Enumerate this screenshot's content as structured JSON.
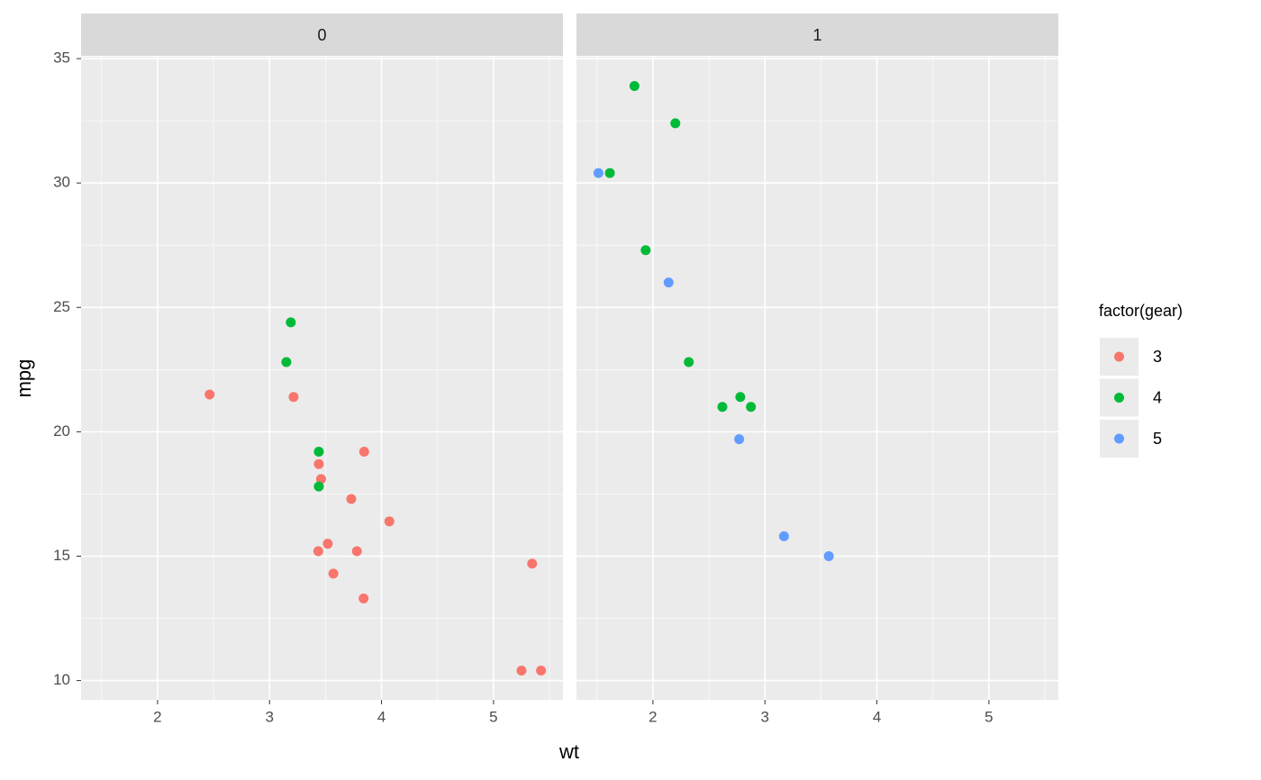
{
  "chart_data": {
    "type": "scatter",
    "xlabel": "wt",
    "ylabel": "mpg",
    "xlim": [
      1.317,
      5.62
    ],
    "ylim": [
      9.225,
      35.075
    ],
    "xticks": [
      2,
      3,
      4,
      5
    ],
    "yticks": [
      10,
      15,
      20,
      25,
      30,
      35
    ],
    "x_minor_ticks": [
      1.5,
      2.5,
      3.5,
      4.5,
      5.5
    ],
    "y_minor_ticks": [
      12.5,
      17.5,
      22.5,
      27.5,
      32.5
    ],
    "grid": true,
    "legend": {
      "title": "factor(gear)",
      "position": "right",
      "entries": [
        {
          "name": "3",
          "color": "#F8766D"
        },
        {
          "name": "4",
          "color": "#00BA38"
        },
        {
          "name": "5",
          "color": "#619CFF"
        }
      ]
    },
    "facets": [
      {
        "title": "0",
        "series": [
          {
            "name": "3",
            "color": "#F8766D",
            "x": [
              3.215,
              3.44,
              3.46,
              3.57,
              4.07,
              3.73,
              3.78,
              5.25,
              5.424,
              5.345,
              2.465,
              3.52,
              3.435,
              3.84,
              3.845
            ],
            "values": [
              21.4,
              18.7,
              18.1,
              14.3,
              16.4,
              17.3,
              15.2,
              10.4,
              10.4,
              14.7,
              21.5,
              15.5,
              15.2,
              13.3,
              19.2
            ]
          },
          {
            "name": "4",
            "color": "#00BA38",
            "x": [
              3.19,
              3.15,
              3.44,
              3.44
            ],
            "values": [
              24.4,
              22.8,
              19.2,
              17.8
            ]
          }
        ]
      },
      {
        "title": "1",
        "series": [
          {
            "name": "4",
            "color": "#00BA38",
            "x": [
              2.62,
              2.875,
              2.32,
              2.2,
              1.615,
              1.835,
              1.935,
              2.78
            ],
            "values": [
              21.0,
              21.0,
              22.8,
              32.4,
              30.4,
              33.9,
              27.3,
              21.4
            ]
          },
          {
            "name": "5",
            "color": "#619CFF",
            "x": [
              2.14,
              1.513,
              3.17,
              2.77,
              3.57
            ],
            "values": [
              26.0,
              30.4,
              15.8,
              19.7,
              15.0
            ]
          }
        ]
      }
    ]
  }
}
